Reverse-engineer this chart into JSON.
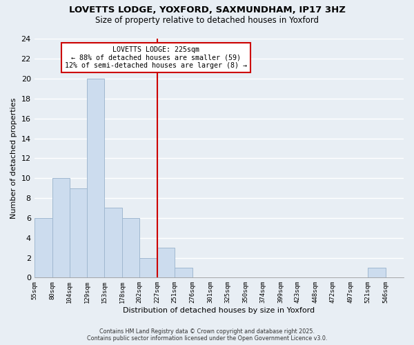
{
  "title": "LOVETTS LODGE, YOXFORD, SAXMUNDHAM, IP17 3HZ",
  "subtitle": "Size of property relative to detached houses in Yoxford",
  "xlabel": "Distribution of detached houses by size in Yoxford",
  "ylabel": "Number of detached properties",
  "bin_labels": [
    "55sqm",
    "80sqm",
    "104sqm",
    "129sqm",
    "153sqm",
    "178sqm",
    "202sqm",
    "227sqm",
    "251sqm",
    "276sqm",
    "301sqm",
    "325sqm",
    "350sqm",
    "374sqm",
    "399sqm",
    "423sqm",
    "448sqm",
    "472sqm",
    "497sqm",
    "521sqm",
    "546sqm"
  ],
  "bin_edges": [
    55,
    80,
    104,
    129,
    153,
    178,
    202,
    227,
    251,
    276,
    301,
    325,
    350,
    374,
    399,
    423,
    448,
    472,
    497,
    521,
    546,
    571
  ],
  "counts": [
    6,
    10,
    9,
    20,
    7,
    6,
    2,
    3,
    1,
    0,
    0,
    0,
    0,
    0,
    0,
    0,
    0,
    0,
    0,
    1,
    0
  ],
  "bar_facecolor": "#ccdcee",
  "bar_edgecolor": "#a0b8d0",
  "vline_x": 227,
  "vline_color": "#cc0000",
  "annotation_title": "LOVETTS LODGE: 225sqm",
  "annotation_line1": "← 88% of detached houses are smaller (59)",
  "annotation_line2": "12% of semi-detached houses are larger (8) →",
  "annotation_box_facecolor": "#ffffff",
  "annotation_box_edgecolor": "#cc0000",
  "ylim": [
    0,
    24
  ],
  "yticks": [
    0,
    2,
    4,
    6,
    8,
    10,
    12,
    14,
    16,
    18,
    20,
    22,
    24
  ],
  "footer_line1": "Contains HM Land Registry data © Crown copyright and database right 2025.",
  "footer_line2": "Contains public sector information licensed under the Open Government Licence v3.0.",
  "bg_color": "#e8eef4",
  "plot_bg_color": "#e8eef4",
  "grid_color": "#ffffff"
}
